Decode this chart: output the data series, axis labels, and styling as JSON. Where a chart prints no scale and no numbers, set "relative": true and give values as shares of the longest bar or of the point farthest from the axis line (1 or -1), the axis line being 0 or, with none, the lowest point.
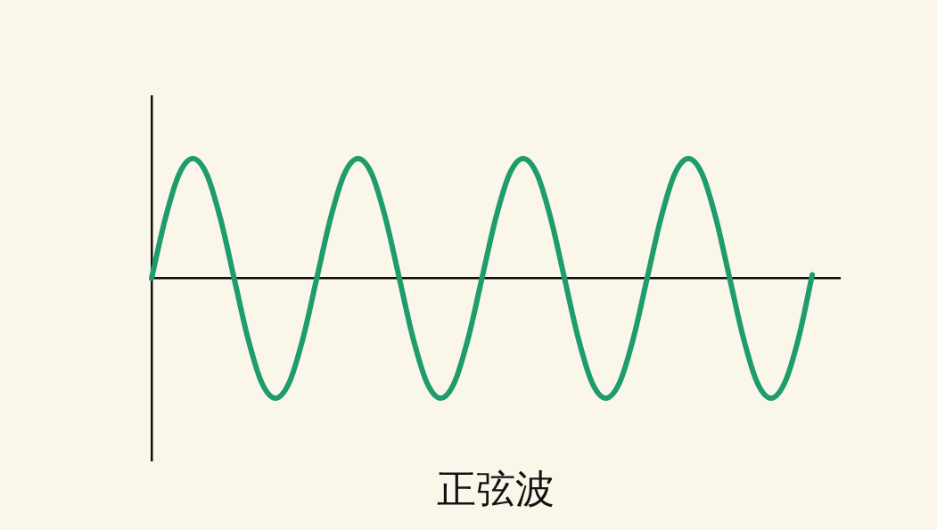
{
  "chart_data": {
    "type": "line",
    "relative": true,
    "xlabel": "正弦波",
    "color": "#1f9c6c",
    "marker": "none",
    "line_style": "solid",
    "grid": false,
    "legend": false,
    "categories": [
      null,
      null,
      null,
      null,
      null,
      null,
      null,
      null,
      null,
      null,
      null,
      null,
      null,
      null,
      null,
      null,
      null,
      null,
      null,
      null,
      null,
      null,
      null,
      null,
      null,
      null,
      null,
      null,
      null,
      null,
      null,
      null,
      null,
      null,
      null,
      null,
      null,
      null,
      null,
      null,
      null,
      null,
      null,
      null,
      null,
      null,
      null,
      null,
      null,
      null,
      null
    ],
    "values": [
      0,
      0.5,
      0.87,
      1,
      0.87,
      0.5,
      0,
      -0.5,
      -0.87,
      -1,
      -0.87,
      -0.5,
      0,
      0.5,
      0.87,
      1,
      0.87,
      0.5,
      0,
      -0.5,
      -0.87,
      -1,
      -0.87,
      -0.5,
      0,
      0.5,
      0.87,
      1,
      0.87,
      0.5,
      0,
      -0.5,
      -0.87,
      -1,
      -0.87,
      -0.5,
      0,
      0.5,
      0.87,
      1,
      0.87,
      0.5,
      0,
      -0.5,
      -0.87,
      -1,
      -0.87,
      -0.5,
      0.03,
      null,
      null
    ]
  }
}
